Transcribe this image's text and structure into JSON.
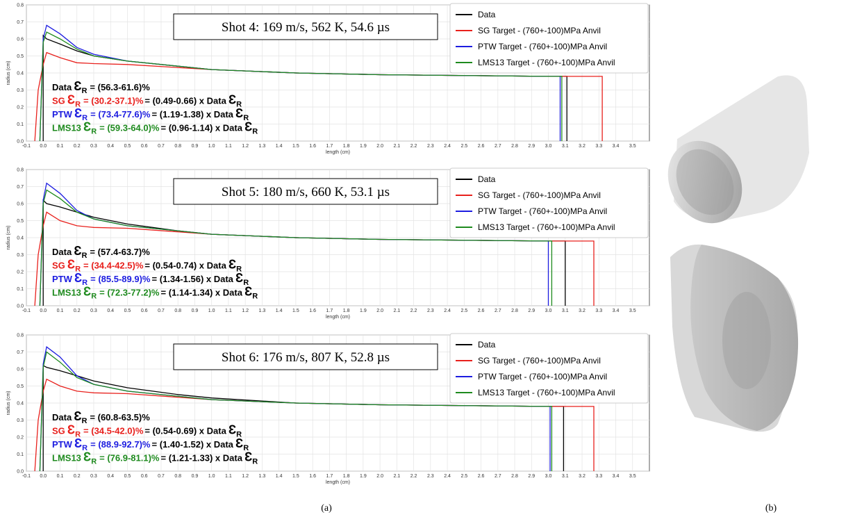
{
  "chart_data": [
    {
      "type": "line",
      "xlabel": "length (cm)",
      "ylabel": "radius (cm)",
      "grid": true,
      "info": "Shot 4: 169 m/s, 562 K, 54.6 µs",
      "xlim": [
        -0.1,
        3.6
      ],
      "ylim": [
        0,
        0.8
      ],
      "xticks": [
        -0.1,
        {
          "value": 0,
          "label": "0.0"
        },
        0.1,
        0.2,
        0.3,
        0.4,
        0.5,
        0.6,
        0.7,
        0.8,
        0.9,
        {
          "value": 1,
          "label": "1.0"
        },
        1.1,
        1.2,
        1.3,
        1.4,
        1.5,
        1.6,
        1.7,
        1.8,
        1.9,
        {
          "value": 2,
          "label": "2.0"
        },
        2.1,
        2.2,
        2.3,
        2.4,
        2.5,
        2.6,
        2.7,
        2.8,
        2.9,
        {
          "value": 3,
          "label": "3.0"
        },
        3.1,
        3.2,
        3.3,
        3.4,
        3.5
      ],
      "yticks": [
        {
          "value": 0,
          "label": "0.0"
        },
        0.1,
        0.2,
        0.3,
        0.4,
        0.5,
        0.6,
        0.7,
        0.8
      ],
      "series": [
        {
          "name": "Data",
          "color": "#000000",
          "x": [
            0,
            0,
            0.02,
            0.1,
            0.2,
            0.3,
            0.5,
            0.8,
            1.0,
            1.5,
            2.0,
            2.5,
            3.0,
            3.11,
            3.11
          ],
          "values": [
            0,
            0.62,
            0.6,
            0.57,
            0.53,
            0.5,
            0.47,
            0.44,
            0.42,
            0.4,
            0.39,
            0.385,
            0.38,
            0.38,
            0
          ]
        },
        {
          "name": "SG Target - (760+-100)MPa Anvil",
          "color": "#e8201c",
          "x": [
            -0.05,
            -0.03,
            0,
            0.02,
            0.1,
            0.2,
            0.3,
            0.5,
            1.0,
            1.5,
            2.0,
            3.0,
            3.32,
            3.32
          ],
          "values": [
            0,
            0.3,
            0.45,
            0.52,
            0.49,
            0.46,
            0.455,
            0.45,
            0.42,
            0.4,
            0.39,
            0.38,
            0.38,
            0
          ]
        },
        {
          "name": "PTW Target - (760+-100)MPa Anvil",
          "color": "#1c1ce0",
          "x": [
            -0.02,
            0,
            0.02,
            0.1,
            0.2,
            0.3,
            0.5,
            1.0,
            1.5,
            2.0,
            3.0,
            3.07,
            3.07
          ],
          "values": [
            0,
            0.6,
            0.68,
            0.63,
            0.55,
            0.51,
            0.47,
            0.42,
            0.4,
            0.39,
            0.38,
            0.38,
            0
          ]
        },
        {
          "name": "LMS13 Target - (760+-100)MPa Anvil",
          "color": "#1e8a1e",
          "x": [
            -0.02,
            0,
            0.02,
            0.1,
            0.2,
            0.3,
            0.5,
            1.0,
            1.5,
            2.0,
            3.0,
            3.08,
            3.08
          ],
          "values": [
            0,
            0.58,
            0.64,
            0.6,
            0.54,
            0.5,
            0.47,
            0.42,
            0.4,
            0.39,
            0.38,
            0.38,
            0
          ]
        }
      ],
      "annotations": [
        {
          "label": "Data",
          "color": "#000000",
          "symbol": "Ɛ",
          "subscript": "R",
          "range": "= (56.3-61.6)%"
        },
        {
          "label": "SG",
          "color": "#e8201c",
          "symbol": "Ɛ",
          "subscript": "R",
          "range": "= (30.2-37.1)%",
          "ratio": "= (0.49-0.66) x Data",
          "symbol2": "Ɛ",
          "subscript2": "R"
        },
        {
          "label": "PTW",
          "color": "#1c1ce0",
          "symbol": "Ɛ",
          "subscript": "R",
          "range": "= (73.4-77.6)%",
          "ratio": "= (1.19-1.38) x Data",
          "symbol2": "Ɛ",
          "subscript2": "R"
        },
        {
          "label": "LMS13",
          "color": "#1e8a1e",
          "symbol": "Ɛ",
          "subscript": "R",
          "range": "= (59.3-64.0)%",
          "ratio": "= (0.96-1.14) x Data",
          "symbol2": "Ɛ",
          "subscript2": "R"
        }
      ]
    },
    {
      "type": "line",
      "xlabel": "length (cm)",
      "ylabel": "radius (cm)",
      "grid": true,
      "info": "Shot 5: 180 m/s, 660 K, 53.1 µs",
      "xlim": [
        -0.1,
        3.6
      ],
      "ylim": [
        0,
        0.8
      ],
      "xticks": [
        -0.1,
        {
          "value": 0,
          "label": "0.0"
        },
        0.1,
        0.2,
        0.3,
        0.4,
        0.5,
        0.6,
        0.7,
        0.8,
        0.9,
        {
          "value": 1,
          "label": "1.0"
        },
        1.1,
        1.2,
        1.3,
        1.4,
        1.5,
        1.6,
        1.7,
        1.8,
        1.9,
        {
          "value": 2,
          "label": "2.0"
        },
        2.1,
        2.2,
        2.3,
        2.4,
        2.5,
        2.6,
        2.7,
        2.8,
        2.9,
        {
          "value": 3,
          "label": "3.0"
        },
        3.1,
        3.2,
        3.3,
        3.4,
        3.5
      ],
      "yticks": [
        {
          "value": 0,
          "label": "0.0"
        },
        0.1,
        0.2,
        0.3,
        0.4,
        0.5,
        0.6,
        0.7,
        0.8
      ],
      "series": [
        {
          "name": "Data",
          "color": "#000000",
          "x": [
            0,
            0,
            0.02,
            0.1,
            0.2,
            0.3,
            0.5,
            0.8,
            1.0,
            1.5,
            2.0,
            2.5,
            3.0,
            3.1,
            3.1
          ],
          "values": [
            0,
            0.62,
            0.6,
            0.58,
            0.55,
            0.52,
            0.48,
            0.44,
            0.42,
            0.4,
            0.39,
            0.385,
            0.38,
            0.38,
            0
          ]
        },
        {
          "name": "SG Target - (760+-100)MPa Anvil",
          "color": "#e8201c",
          "x": [
            -0.05,
            -0.03,
            0,
            0.02,
            0.1,
            0.2,
            0.3,
            0.5,
            1.0,
            1.5,
            2.0,
            3.0,
            3.27,
            3.27
          ],
          "values": [
            0,
            0.3,
            0.47,
            0.55,
            0.5,
            0.47,
            0.46,
            0.455,
            0.42,
            0.4,
            0.39,
            0.38,
            0.38,
            0
          ]
        },
        {
          "name": "PTW Target - (760+-100)MPa Anvil",
          "color": "#1c1ce0",
          "x": [
            -0.02,
            0,
            0.02,
            0.1,
            0.2,
            0.3,
            0.5,
            1.0,
            1.5,
            2.0,
            3.0,
            3.0
          ],
          "values": [
            0,
            0.62,
            0.72,
            0.66,
            0.56,
            0.51,
            0.47,
            0.42,
            0.4,
            0.39,
            0.38,
            0
          ]
        },
        {
          "name": "LMS13 Target - (760+-100)MPa Anvil",
          "color": "#1e8a1e",
          "x": [
            -0.02,
            0,
            0.02,
            0.1,
            0.2,
            0.3,
            0.5,
            1.0,
            1.5,
            2.0,
            3.0,
            3.02,
            3.02
          ],
          "values": [
            0,
            0.6,
            0.68,
            0.63,
            0.55,
            0.51,
            0.47,
            0.42,
            0.4,
            0.39,
            0.38,
            0.38,
            0
          ]
        }
      ],
      "annotations": [
        {
          "label": "Data",
          "color": "#000000",
          "symbol": "Ɛ",
          "subscript": "R",
          "range": "= (57.4-63.7)%"
        },
        {
          "label": "SG",
          "color": "#e8201c",
          "symbol": "Ɛ",
          "subscript": "R",
          "range": "= (34.4-42.5)%",
          "ratio": "= (0.54-0.74) x Data",
          "symbol2": "Ɛ",
          "subscript2": "R"
        },
        {
          "label": "PTW",
          "color": "#1c1ce0",
          "symbol": "Ɛ",
          "subscript": "R",
          "range": "= (85.5-89.9)%",
          "ratio": "= (1.34-1.56) x Data",
          "symbol2": "Ɛ",
          "subscript2": "R"
        },
        {
          "label": "LMS13",
          "color": "#1e8a1e",
          "symbol": "Ɛ",
          "subscript": "R",
          "range": "= (72.3-77.2)%",
          "ratio": "= (1.14-1.34) x Data",
          "symbol2": "Ɛ",
          "subscript2": "R"
        }
      ]
    },
    {
      "type": "line",
      "xlabel": "length (cm)",
      "ylabel": "radius (cm)",
      "grid": true,
      "info": "Shot 6: 176 m/s, 807 K, 52.8 µs",
      "xlim": [
        -0.1,
        3.6
      ],
      "ylim": [
        0,
        0.8
      ],
      "xticks": [
        -0.1,
        {
          "value": 0,
          "label": "0.0"
        },
        0.1,
        0.2,
        0.3,
        0.4,
        0.5,
        0.6,
        0.7,
        0.8,
        0.9,
        {
          "value": 1,
          "label": "1.0"
        },
        1.1,
        1.2,
        1.3,
        1.4,
        1.5,
        1.6,
        1.7,
        1.8,
        1.9,
        {
          "value": 2,
          "label": "2.0"
        },
        2.1,
        2.2,
        2.3,
        2.4,
        2.5,
        2.6,
        2.7,
        2.8,
        2.9,
        {
          "value": 3,
          "label": "3.0"
        },
        3.1,
        3.2,
        3.3,
        3.4,
        3.5
      ],
      "yticks": [
        {
          "value": 0,
          "label": "0.0"
        },
        0.1,
        0.2,
        0.3,
        0.4,
        0.5,
        0.6,
        0.7,
        0.8
      ],
      "series": [
        {
          "name": "Data",
          "color": "#000000",
          "x": [
            0,
            0,
            0.02,
            0.1,
            0.2,
            0.3,
            0.5,
            0.8,
            1.0,
            1.5,
            2.0,
            2.5,
            3.0,
            3.09,
            3.09
          ],
          "values": [
            0,
            0.62,
            0.61,
            0.59,
            0.56,
            0.53,
            0.49,
            0.45,
            0.43,
            0.4,
            0.39,
            0.385,
            0.38,
            0.38,
            0
          ]
        },
        {
          "name": "SG Target - (760+-100)MPa Anvil",
          "color": "#e8201c",
          "x": [
            -0.05,
            -0.03,
            0,
            0.02,
            0.1,
            0.2,
            0.3,
            0.5,
            1.0,
            1.5,
            2.0,
            3.0,
            3.27,
            3.27
          ],
          "values": [
            0,
            0.3,
            0.47,
            0.54,
            0.5,
            0.47,
            0.46,
            0.455,
            0.42,
            0.4,
            0.39,
            0.38,
            0.38,
            0
          ]
        },
        {
          "name": "PTW Target - (760+-100)MPa Anvil",
          "color": "#1c1ce0",
          "x": [
            -0.02,
            0,
            0.02,
            0.1,
            0.2,
            0.3,
            0.5,
            1.0,
            1.5,
            2.0,
            3.0,
            3.01,
            3.01
          ],
          "values": [
            0,
            0.63,
            0.73,
            0.67,
            0.56,
            0.51,
            0.47,
            0.42,
            0.4,
            0.39,
            0.38,
            0.38,
            0
          ]
        },
        {
          "name": "LMS13 Target - (760+-100)MPa Anvil",
          "color": "#1e8a1e",
          "x": [
            -0.02,
            0,
            0.02,
            0.1,
            0.2,
            0.3,
            0.5,
            1.0,
            1.5,
            2.0,
            3.0,
            3.02,
            3.02
          ],
          "values": [
            0,
            0.61,
            0.7,
            0.64,
            0.55,
            0.51,
            0.47,
            0.42,
            0.4,
            0.39,
            0.38,
            0.38,
            0
          ]
        }
      ],
      "annotations": [
        {
          "label": "Data",
          "color": "#000000",
          "symbol": "Ɛ",
          "subscript": "R",
          "range": "= (60.8-63.5)%"
        },
        {
          "label": "SG",
          "color": "#e8201c",
          "symbol": "Ɛ",
          "subscript": "R",
          "range": "= (34.5-42.0)%",
          "ratio": "= (0.54-0.69) x Data",
          "symbol2": "Ɛ",
          "subscript2": "R"
        },
        {
          "label": "PTW",
          "color": "#1c1ce0",
          "symbol": "Ɛ",
          "subscript": "R",
          "range": "= (88.9-92.7)%",
          "ratio": "= (1.40-1.52) x Data",
          "symbol2": "Ɛ",
          "subscript2": "R"
        },
        {
          "label": "LMS13",
          "color": "#1e8a1e",
          "symbol": "Ɛ",
          "subscript": "R",
          "range": "= (76.9-81.1)%",
          "ratio": "= (1.21-1.33) x Data",
          "symbol2": "Ɛ",
          "subscript2": "R"
        }
      ]
    }
  ],
  "captions": {
    "a": "(a)",
    "b": "(b)"
  }
}
